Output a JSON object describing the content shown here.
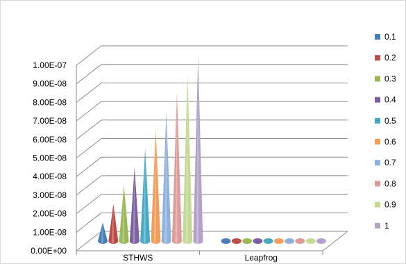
{
  "chart_data": {
    "type": "bar",
    "subtype": "3d-cone",
    "categories": [
      "STHWS",
      "Leapfrog"
    ],
    "series": [
      {
        "name": "0.1",
        "color": "#4a7ebb",
        "values": [
          1e-08,
          0
        ]
      },
      {
        "name": "0.2",
        "color": "#be4b48",
        "values": [
          2e-08,
          0
        ]
      },
      {
        "name": "0.3",
        "color": "#98b954",
        "values": [
          3e-08,
          0
        ]
      },
      {
        "name": "0.4",
        "color": "#7d60a0",
        "values": [
          4e-08,
          0
        ]
      },
      {
        "name": "0.5",
        "color": "#46aac5",
        "values": [
          5e-08,
          0
        ]
      },
      {
        "name": "0.6",
        "color": "#f59d56",
        "values": [
          6e-08,
          0
        ]
      },
      {
        "name": "0.7",
        "color": "#8fb1de",
        "values": [
          7e-08,
          0
        ]
      },
      {
        "name": "0.8",
        "color": "#df9b9a",
        "values": [
          8e-08,
          0
        ]
      },
      {
        "name": "0.9",
        "color": "#c3da93",
        "values": [
          9e-08,
          0
        ]
      },
      {
        "name": "1",
        "color": "#b3a2c7",
        "values": [
          1e-07,
          0
        ]
      }
    ],
    "y_ticks": [
      "0.00E+00",
      "1.00E-08",
      "2.00E-08",
      "3.00E-08",
      "4.00E-08",
      "5.00E-08",
      "6.00E-08",
      "7.00E-08",
      "8.00E-08",
      "9.00E-08",
      "1.00E-07"
    ],
    "ylim": [
      0,
      1e-07
    ],
    "title": "",
    "xlabel": "",
    "ylabel": "",
    "grid": true,
    "legend_position": "right"
  }
}
